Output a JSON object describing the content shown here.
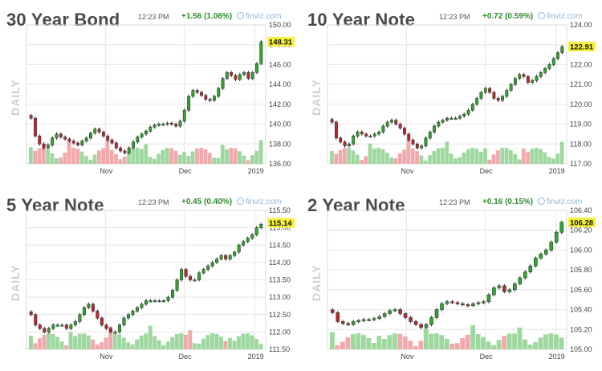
{
  "panels": [
    {
      "title": "30 Year Bond",
      "time": "12:23 PM",
      "change": "+1.56 (1.06%)",
      "source": "finviz.com",
      "daily_label": "DAILY",
      "last_price": "148.31"
    },
    {
      "title": "10 Year Note",
      "time": "12:23 PM",
      "change": "+0.72 (0.59%)",
      "source": "finviz.com",
      "daily_label": "DAILY",
      "last_price": "122.91"
    },
    {
      "title": "5 Year Note",
      "time": "12:23 PM",
      "change": "+0.45 (0.40%)",
      "source": "finviz.com",
      "daily_label": "DAILY",
      "last_price": "115.14"
    },
    {
      "title": "2 Year Note",
      "time": "12:23 PM",
      "change": "+0.16 (0.15%)",
      "source": "finviz.com",
      "daily_label": "DAILY",
      "last_price": "106.28"
    }
  ],
  "colors": {
    "up": "#2fa82f",
    "down": "#c0272d",
    "volume_up": "#9fd89f",
    "volume_down": "#f2a9ad",
    "grid": "#e6e6e6",
    "last_price_bg": "#f6f13a"
  },
  "chart_data": [
    {
      "type": "candlestick",
      "title": "30 Year Bond",
      "x_tick_labels": [
        "Nov",
        "Dec",
        "2019"
      ],
      "y_tick_labels": [
        "136.00",
        "138.00",
        "140.00",
        "142.00",
        "144.00",
        "146.00",
        "148.00",
        "150.00"
      ],
      "ylim": [
        136,
        150
      ],
      "grid": true,
      "last_value": 148.31,
      "close_series": [
        140.6,
        138.8,
        138.0,
        137.6,
        137.9,
        138.6,
        139.0,
        138.7,
        138.5,
        138.3,
        138.1,
        137.9,
        138.3,
        138.6,
        139.1,
        139.5,
        139.2,
        138.8,
        138.4,
        138.1,
        137.6,
        137.3,
        137.1,
        137.6,
        138.2,
        138.7,
        139.0,
        139.3,
        139.7,
        139.9,
        140.0,
        140.0,
        140.1,
        140.0,
        139.8,
        140.3,
        141.4,
        142.8,
        143.4,
        143.2,
        142.9,
        142.5,
        142.4,
        142.8,
        143.6,
        144.6,
        145.2,
        144.9,
        144.5,
        145.0,
        145.2,
        144.6,
        145.2,
        146.1,
        148.3
      ]
    },
    {
      "type": "candlestick",
      "title": "10 Year Note",
      "x_tick_labels": [
        "Nov",
        "Dec",
        "2019"
      ],
      "y_tick_labels": [
        "117.00",
        "118.00",
        "119.00",
        "120.00",
        "121.00",
        "122.00",
        "123.00",
        "124.00"
      ],
      "ylim": [
        117,
        124
      ],
      "grid": true,
      "last_value": 122.91,
      "close_series": [
        119.1,
        118.3,
        118.1,
        117.9,
        118.0,
        118.4,
        118.6,
        118.5,
        118.4,
        118.4,
        118.5,
        118.6,
        118.9,
        119.1,
        119.2,
        119.0,
        118.8,
        118.5,
        118.2,
        118.0,
        117.8,
        117.9,
        118.3,
        118.6,
        118.9,
        119.1,
        119.2,
        119.3,
        119.3,
        119.3,
        119.4,
        119.5,
        119.7,
        120.0,
        120.3,
        120.6,
        120.8,
        120.6,
        120.3,
        120.2,
        120.4,
        120.7,
        121.0,
        121.3,
        121.5,
        121.4,
        121.1,
        121.2,
        121.4,
        121.6,
        121.8,
        122.0,
        122.3,
        122.6,
        122.9
      ]
    },
    {
      "type": "candlestick",
      "title": "5 Year Note",
      "x_tick_labels": [
        "Nov",
        "Dec",
        "2019"
      ],
      "y_tick_labels": [
        "111.50",
        "112.00",
        "112.50",
        "113.00",
        "113.50",
        "114.00",
        "114.50",
        "115.00",
        "115.50"
      ],
      "ylim": [
        111.5,
        115.5
      ],
      "grid": true,
      "last_value": 115.14,
      "close_series": [
        112.5,
        112.2,
        112.1,
        112.0,
        112.1,
        112.2,
        112.2,
        112.2,
        112.1,
        112.2,
        112.3,
        112.5,
        112.7,
        112.8,
        112.6,
        112.4,
        112.2,
        112.1,
        112.0,
        112.0,
        112.2,
        112.4,
        112.5,
        112.6,
        112.7,
        112.8,
        112.9,
        112.9,
        112.9,
        112.9,
        112.9,
        113.0,
        113.2,
        113.5,
        113.8,
        113.6,
        113.5,
        113.5,
        113.7,
        113.8,
        113.9,
        114.0,
        114.1,
        114.2,
        114.1,
        114.2,
        114.3,
        114.5,
        114.6,
        114.7,
        114.8,
        115.0,
        115.1
      ]
    },
    {
      "type": "candlestick",
      "title": "2 Year Note",
      "x_tick_labels": [
        "Nov",
        "Dec",
        "2019"
      ],
      "y_tick_labels": [
        "105.00",
        "105.20",
        "105.40",
        "105.60",
        "105.80",
        "106.00",
        "106.20",
        "106.40"
      ],
      "ylim": [
        105.0,
        106.4
      ],
      "grid": true,
      "last_value": 106.28,
      "close_series": [
        105.37,
        105.28,
        105.26,
        105.25,
        105.28,
        105.29,
        105.3,
        105.3,
        105.31,
        105.33,
        105.36,
        105.39,
        105.4,
        105.36,
        105.32,
        105.28,
        105.25,
        105.22,
        105.25,
        105.32,
        105.4,
        105.46,
        105.48,
        105.47,
        105.46,
        105.45,
        105.44,
        105.46,
        105.47,
        105.48,
        105.55,
        105.62,
        105.64,
        105.58,
        105.6,
        105.66,
        105.72,
        105.78,
        105.84,
        105.92,
        105.96,
        106.0,
        106.08,
        106.18,
        106.28
      ]
    }
  ]
}
